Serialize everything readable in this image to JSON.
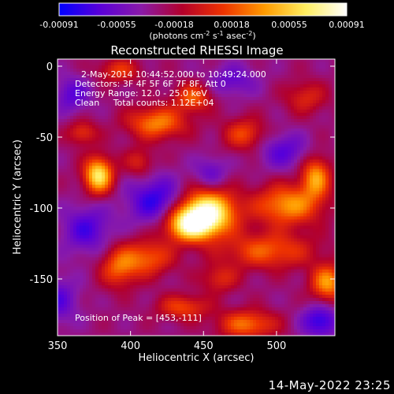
{
  "chart_data": {
    "type": "heatmap",
    "title": "Reconstructed RHESSI Image",
    "xlabel": "Heliocentric X (arcsec)",
    "ylabel": "Heliocentric Y (arcsec)",
    "xlim": [
      350,
      540
    ],
    "ylim": [
      -190,
      5
    ],
    "x_ticks": [
      "350",
      "400",
      "450",
      "500"
    ],
    "y_ticks": [
      "0",
      "-50",
      "-100",
      "-150"
    ],
    "x_tick_values": [
      350,
      400,
      450,
      500
    ],
    "y_tick_values": [
      0,
      -50,
      -100,
      -150
    ],
    "colorbar": {
      "range": [
        -0.00091,
        0.00091
      ],
      "tick_labels": [
        "-0.00091",
        "-0.00055",
        "-0.00018",
        "0.00018",
        "0.00055",
        "0.00091"
      ],
      "unit_label": [
        "(photons cm",
        "-2",
        " s",
        "-1",
        " asec",
        "-2",
        ")"
      ],
      "colors": [
        "#0000ff",
        "#5a00d8",
        "#8a1aa8",
        "#b3002a",
        "#ee3300",
        "#ff9b00",
        "#ffee60",
        "#ffffff"
      ]
    },
    "annotations": [
      "2-May-2014 10:44:52.000 to 10:49:24.000",
      "Detectors: 3F 4F 5F 6F 7F 8F, Att 0",
      "Energy Range: 12.0 - 25.0 keV",
      "Clean     Total counts: 1.12E+04"
    ],
    "peak_label": "Position of Peak = [453,-111]",
    "peak": [
      453,
      -111
    ],
    "sources": [
      {
        "x": 452,
        "y": -103,
        "sx": 14,
        "sy": 11,
        "a": 1.0
      },
      {
        "x": 440,
        "y": -112,
        "sx": 12,
        "sy": 8,
        "a": 0.75
      },
      {
        "x": 378,
        "y": -77,
        "sx": 7,
        "sy": 9,
        "a": 0.85
      },
      {
        "x": 418,
        "y": -40,
        "sx": 14,
        "sy": 8,
        "a": 0.55
      },
      {
        "x": 443,
        "y": -22,
        "sx": 9,
        "sy": 7,
        "a": 0.45
      },
      {
        "x": 508,
        "y": -98,
        "sx": 16,
        "sy": 10,
        "a": 0.6
      },
      {
        "x": 527,
        "y": -78,
        "sx": 7,
        "sy": 10,
        "a": 0.6
      },
      {
        "x": 494,
        "y": -130,
        "sx": 22,
        "sy": 9,
        "a": 0.45
      },
      {
        "x": 478,
        "y": -48,
        "sx": 10,
        "sy": 8,
        "a": 0.4
      },
      {
        "x": 412,
        "y": -135,
        "sx": 12,
        "sy": 9,
        "a": 0.45
      },
      {
        "x": 392,
        "y": -142,
        "sx": 9,
        "sy": 10,
        "a": 0.45
      },
      {
        "x": 436,
        "y": -170,
        "sx": 12,
        "sy": 6,
        "a": 0.4
      },
      {
        "x": 480,
        "y": -182,
        "sx": 14,
        "sy": 7,
        "a": 0.5
      },
      {
        "x": 535,
        "y": -153,
        "sx": 8,
        "sy": 9,
        "a": 0.6
      },
      {
        "x": 392,
        "y": -3,
        "sx": 10,
        "sy": 6,
        "a": 0.35
      },
      {
        "x": 367,
        "y": -47,
        "sx": 7,
        "sy": 6,
        "a": 0.35
      },
      {
        "x": 520,
        "y": -22,
        "sx": 10,
        "sy": 8,
        "a": 0.3
      },
      {
        "x": 461,
        "y": -150,
        "sx": 9,
        "sy": 7,
        "a": 0.3
      },
      {
        "x": 406,
        "y": -68,
        "sx": 7,
        "sy": 7,
        "a": 0.3
      }
    ],
    "sinks": [
      {
        "x": 360,
        "y": -20,
        "sx": 9,
        "sy": 9,
        "a": 0.35
      },
      {
        "x": 418,
        "y": -95,
        "sx": 14,
        "sy": 12,
        "a": 0.5
      },
      {
        "x": 370,
        "y": -115,
        "sx": 12,
        "sy": 12,
        "a": 0.4
      },
      {
        "x": 530,
        "y": -180,
        "sx": 9,
        "sy": 8,
        "a": 0.5
      },
      {
        "x": 470,
        "y": -10,
        "sx": 12,
        "sy": 8,
        "a": 0.3
      },
      {
        "x": 505,
        "y": -60,
        "sx": 12,
        "sy": 9,
        "a": 0.35
      },
      {
        "x": 350,
        "y": -165,
        "sx": 10,
        "sy": 12,
        "a": 0.35
      },
      {
        "x": 455,
        "y": -75,
        "sx": 8,
        "sy": 8,
        "a": 0.3
      }
    ]
  },
  "footer": {
    "timestamp": "14-May-2022 23:25"
  }
}
